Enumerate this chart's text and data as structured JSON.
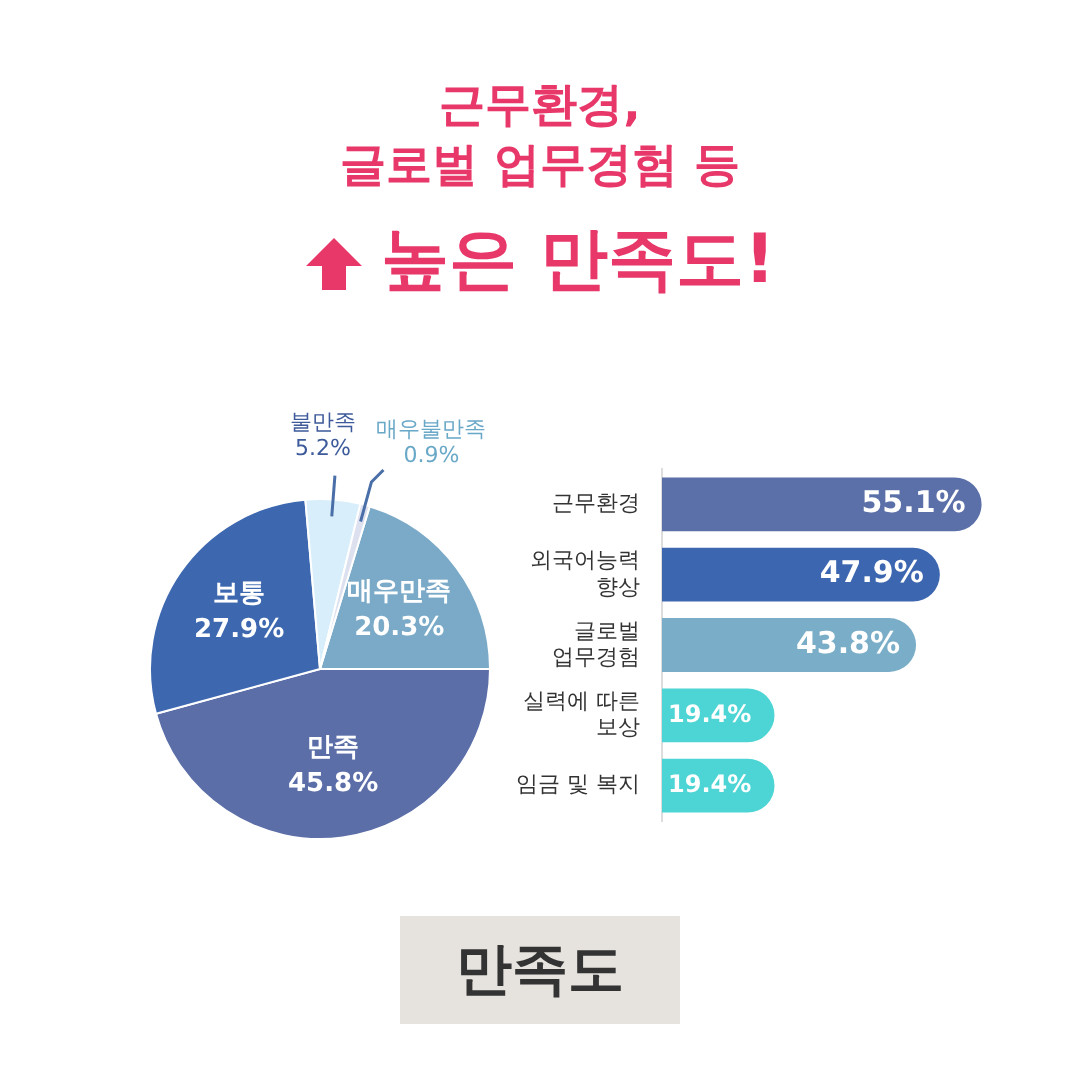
{
  "chart_data": [
    {
      "type": "pie",
      "title": "근무환경,\n글로벌 업무경험 등",
      "subtitle": "높은 만족도!",
      "categories": [
        "매우만족",
        "만족",
        "보통",
        "불만족",
        "매우불만족"
      ],
      "values": [
        20.3,
        45.8,
        27.9,
        5.2,
        0.9
      ],
      "value_labels": [
        "20.3%",
        "45.8%",
        "27.9%",
        "5.2%",
        "0.9%"
      ],
      "colors": [
        "#7aaac8",
        "#5b6ea8",
        "#3d68b0",
        "#d8eefa",
        "#dde0ee"
      ],
      "annotations": [
        "만족도"
      ],
      "legend": false
    },
    {
      "type": "bar",
      "orientation": "horizontal",
      "categories": [
        "근무환경",
        "외국어능력\n향상",
        "글로벌\n업무경험",
        "실력에 따른\n보상",
        "임금 및 복지"
      ],
      "values": [
        55.1,
        47.9,
        43.8,
        19.4,
        19.4
      ],
      "value_labels": [
        "55.1%",
        "47.9%",
        "43.8%",
        "19.4%",
        "19.4%"
      ],
      "colors": [
        "#5b6fa8",
        "#3d66b0",
        "#7aaec8",
        "#4dd4d4",
        "#4dd4d4"
      ],
      "legend": false
    }
  ]
}
